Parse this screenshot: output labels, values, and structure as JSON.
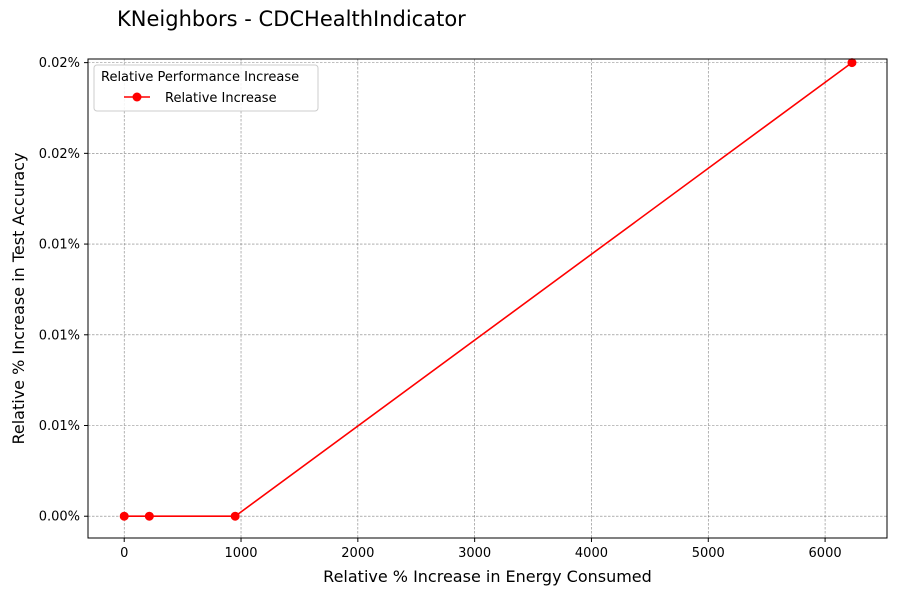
{
  "chart_data": {
    "type": "line",
    "title": "KNeighbors - CDCHealthIndicator",
    "xlabel": "Relative % Increase in Energy Consumed",
    "ylabel": "Relative % Increase in Test Accuracy",
    "xlim": [
      -310,
      6530
    ],
    "ylim": [
      -0.0012,
      0.0252
    ],
    "x_ticks": [
      0,
      1000,
      2000,
      3000,
      4000,
      5000,
      6000
    ],
    "x_tick_labels": [
      "0",
      "1000",
      "2000",
      "3000",
      "4000",
      "5000",
      "6000"
    ],
    "y_ticks": [
      0,
      0.005,
      0.01,
      0.015,
      0.02,
      0.025
    ],
    "y_tick_labels": [
      "0.00%",
      "0.01%",
      "0.01%",
      "0.01%",
      "0.02%",
      "0.02%"
    ],
    "grid": true,
    "legend": {
      "title": "Relative Performance Increase",
      "placement": "top-left"
    },
    "series": [
      {
        "name": "Relative Increase",
        "color": "#ff0000",
        "marker": "circle",
        "x": [
          0,
          215,
          950,
          6230
        ],
        "y": [
          0,
          0,
          0,
          0.025
        ]
      }
    ]
  }
}
